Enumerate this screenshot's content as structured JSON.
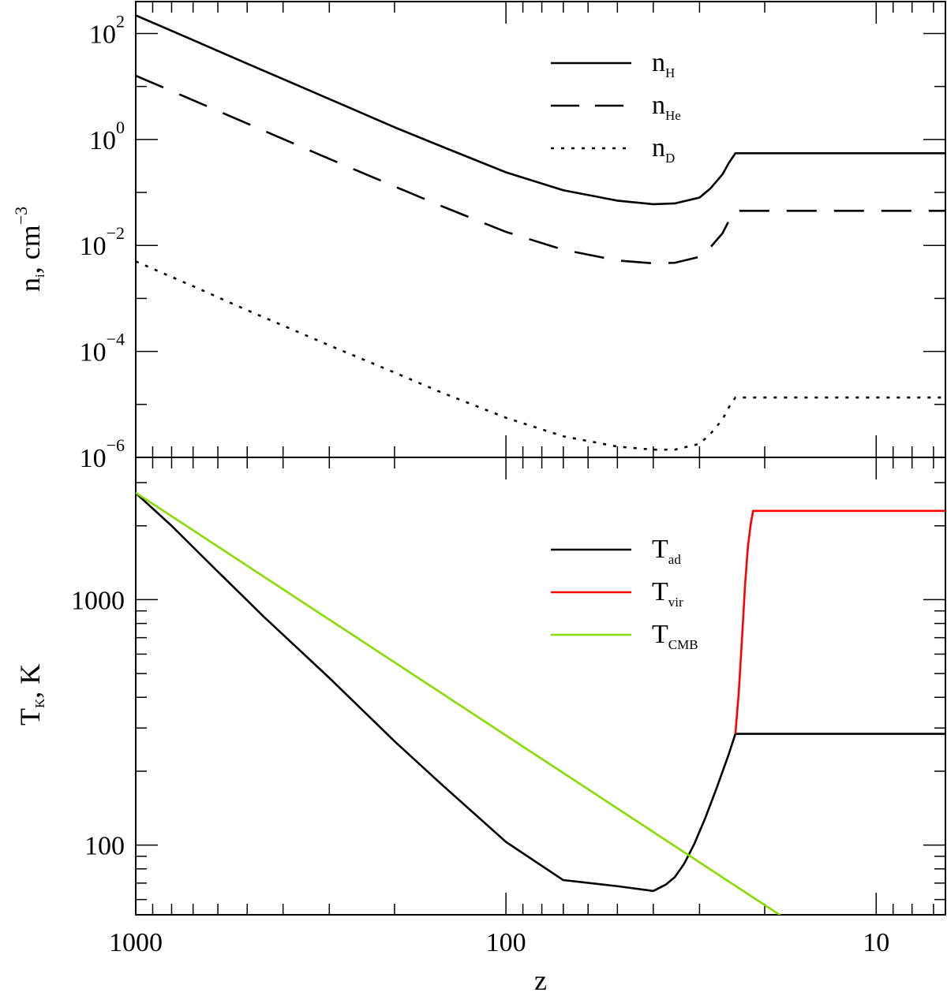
{
  "chart_data": [
    {
      "type": "line",
      "panel": "top",
      "xscale": "log",
      "xreversed": true,
      "yscale": "log",
      "xlim": [
        1000,
        6.5
      ],
      "ylim": [
        1e-06,
        400
      ],
      "ylabel_main": "n",
      "ylabel_sub": "i",
      "ylabel_tail": ",  cm",
      "ylabel_sup": "−3",
      "ytick_labels": [
        {
          "value": 100,
          "base": "10",
          "exp": "2"
        },
        {
          "value": 1,
          "base": "10",
          "exp": "0"
        },
        {
          "value": 0.01,
          "base": "10",
          "exp": "−2"
        },
        {
          "value": 0.0001,
          "base": "10",
          "exp": "−4"
        },
        {
          "value": 1e-06,
          "base": "10",
          "exp": "−6"
        }
      ],
      "legend_placement": "top-right",
      "series": [
        {
          "name_main": "n",
          "name_sub": "H",
          "style": "solid",
          "color": "#000000",
          "x": [
            1000,
            700,
            500,
            300,
            200,
            150,
            100,
            70,
            50,
            40,
            35,
            30,
            28,
            26,
            25,
            24,
            6.5
          ],
          "y": [
            220,
            75,
            27,
            5.8,
            1.7,
            0.75,
            0.24,
            0.11,
            0.07,
            0.06,
            0.062,
            0.08,
            0.12,
            0.22,
            0.36,
            0.55,
            0.55
          ]
        },
        {
          "name_main": "n",
          "name_sub": "He",
          "style": "dashed",
          "color": "#000000",
          "x": [
            1000,
            700,
            500,
            300,
            200,
            150,
            100,
            70,
            50,
            40,
            35,
            30,
            28,
            26,
            25,
            24,
            6.5
          ],
          "y": [
            16,
            5.5,
            2.0,
            0.43,
            0.13,
            0.056,
            0.018,
            0.0083,
            0.0052,
            0.0046,
            0.0047,
            0.0061,
            0.0093,
            0.017,
            0.029,
            0.045,
            0.045
          ]
        },
        {
          "name_main": "n",
          "name_sub": "D",
          "style": "dotted",
          "color": "#000000",
          "x": [
            1000,
            700,
            500,
            300,
            200,
            150,
            100,
            70,
            50,
            40,
            35,
            30,
            28,
            26,
            25,
            24,
            6.5
          ],
          "y": [
            0.005,
            0.0017,
            0.0006,
            0.00013,
            4e-05,
            1.7e-05,
            5.6e-06,
            2.5e-06,
            1.6e-06,
            1.4e-06,
            1.4e-06,
            1.8e-06,
            2.8e-06,
            5.2e-06,
            8.8e-06,
            1.35e-05,
            1.35e-05
          ]
        }
      ]
    },
    {
      "type": "line",
      "panel": "bottom",
      "xscale": "log",
      "xreversed": true,
      "yscale": "log",
      "xlim": [
        1000,
        6.5
      ],
      "ylim": [
        52,
        3800
      ],
      "xlabel": "z",
      "xtick_labels": [
        {
          "value": 1000,
          "label": "1000"
        },
        {
          "value": 100,
          "label": "100"
        },
        {
          "value": 10,
          "label": "10"
        }
      ],
      "ylabel_main": "T",
      "ylabel_sub": "K",
      "ylabel_tail": ",  K",
      "ytick_labels": [
        {
          "value": 1000,
          "label": "1000"
        },
        {
          "value": 100,
          "label": "100"
        }
      ],
      "legend_placement": "top-right",
      "series": [
        {
          "name_main": "T",
          "name_sub": "ad",
          "style": "solid",
          "color": "#000000",
          "x": [
            1000,
            800,
            600,
            450,
            300,
            200,
            150,
            100,
            70,
            50,
            40,
            37,
            35,
            33,
            31,
            29,
            27,
            25,
            24,
            6.5
          ],
          "y": [
            2720,
            2000,
            1300,
            850,
            480,
            265,
            178,
            103,
            72,
            68,
            65,
            69,
            74,
            84,
            101,
            128,
            170,
            235,
            284,
            284
          ]
        },
        {
          "name_main": "T",
          "name_sub": "vir",
          "style": "solid",
          "color": "#ff0000",
          "x": [
            24,
            23.5,
            23,
            22.6,
            22.2,
            21.8,
            21.5,
            6.5
          ],
          "y": [
            284,
            420,
            720,
            1150,
            1650,
            2050,
            2300,
            2300
          ]
        },
        {
          "name_main": "T",
          "name_sub": "CMB",
          "style": "solid",
          "color": "#88dd00",
          "x": [
            1000,
            17.7
          ],
          "y": [
            2728,
            50.5
          ]
        }
      ]
    }
  ]
}
